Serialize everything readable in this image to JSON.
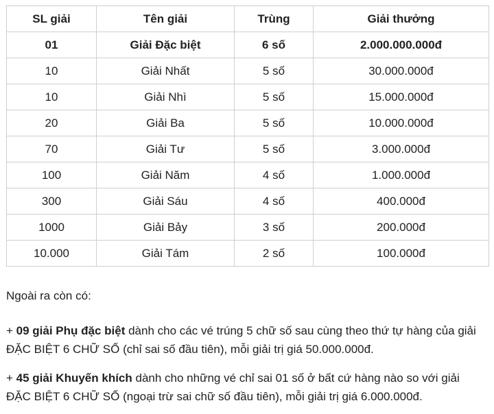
{
  "table": {
    "headers": [
      "SL giải",
      "Tên giải",
      "Trùng",
      "Giải thưởng"
    ],
    "rows": [
      [
        "01",
        "Giải Đặc biệt",
        "6 số",
        "2.000.000.000đ"
      ],
      [
        "10",
        "Giải Nhất",
        "5 số",
        "30.000.000đ"
      ],
      [
        "10",
        "Giải Nhì",
        "5 số",
        "15.000.000đ"
      ],
      [
        "20",
        "Giải Ba",
        "5 số",
        "10.000.000đ"
      ],
      [
        "70",
        "Giải Tư",
        "5 số",
        "3.000.000đ"
      ],
      [
        "100",
        "Giải Năm",
        "4 số",
        "1.000.000đ"
      ],
      [
        "300",
        "Giải Sáu",
        "4 số",
        "400.000đ"
      ],
      [
        "1000",
        "Giải Bảy",
        "3 số",
        "200.000đ"
      ],
      [
        "10.000",
        "Giải Tám",
        "2 số",
        "100.000đ"
      ]
    ]
  },
  "notes": {
    "intro": "Ngoài ra còn có:",
    "items": [
      {
        "prefix": "+ ",
        "bold": "09 giải Phụ đặc biệt",
        "rest": " dành cho các vé trúng 5 chữ số sau cùng theo thứ tự hàng của giải ĐẶC BIỆT 6 CHỮ SỐ (chỉ sai số đầu tiên), mỗi giải trị giá 50.000.000đ."
      },
      {
        "prefix": "+ ",
        "bold": "45 giải Khuyến khích",
        "rest": " dành cho những vé chỉ sai 01 số ở bất cứ hàng nào so với giải ĐẶC BIỆT 6 CHỮ SỐ (ngoại trừ sai chữ số đầu tiên), mỗi giải trị giá 6.000.000đ."
      }
    ]
  },
  "colors": {
    "table_border": "#cfcfcf",
    "text": "#212121",
    "background": "#ffffff"
  }
}
